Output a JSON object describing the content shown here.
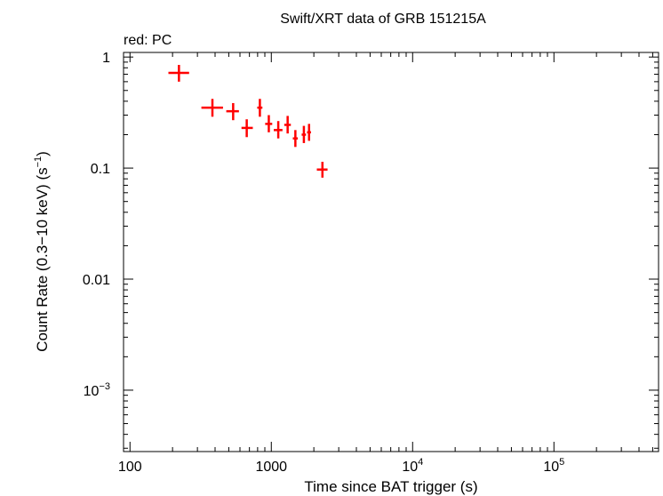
{
  "chart_data": {
    "type": "scatter",
    "title": "Swift/XRT data of GRB 151215A",
    "subtitle": "red: PC",
    "xlabel": "Time since BAT trigger (s)",
    "ylabel_main": "Count Rate (0.3−10 keV) (s",
    "ylabel_sup": "−1",
    "ylabel_close": ")",
    "x_scale": "log",
    "y_scale": "log",
    "xlim": [
      90,
      550000
    ],
    "ylim": [
      0.00028,
      1.1
    ],
    "grid": false,
    "x_ticks": [
      {
        "value": 100,
        "label": "100"
      },
      {
        "value": 1000,
        "label": "1000"
      },
      {
        "value": 10000,
        "base": "10",
        "exp": "4"
      },
      {
        "value": 100000,
        "base": "10",
        "exp": "5"
      }
    ],
    "y_ticks": [
      {
        "value": 1,
        "label": "1"
      },
      {
        "value": 0.1,
        "label": "0.1"
      },
      {
        "value": 0.01,
        "label": "0.01"
      },
      {
        "value": 0.001,
        "base": "10",
        "exp": "−3"
      }
    ],
    "series": [
      {
        "color": "#ff0000",
        "points": [
          {
            "x": 222,
            "xlo": 187,
            "xhi": 262,
            "y": 0.72,
            "ylo": 0.6,
            "yhi": 0.85
          },
          {
            "x": 383,
            "xlo": 320,
            "xhi": 455,
            "y": 0.35,
            "ylo": 0.29,
            "yhi": 0.42
          },
          {
            "x": 537,
            "xlo": 480,
            "xhi": 590,
            "y": 0.325,
            "ylo": 0.27,
            "yhi": 0.385
          },
          {
            "x": 670,
            "xlo": 615,
            "xhi": 740,
            "y": 0.23,
            "ylo": 0.19,
            "yhi": 0.275
          },
          {
            "x": 830,
            "xlo": 795,
            "xhi": 865,
            "y": 0.35,
            "ylo": 0.29,
            "yhi": 0.42
          },
          {
            "x": 960,
            "xlo": 905,
            "xhi": 1015,
            "y": 0.25,
            "ylo": 0.21,
            "yhi": 0.3
          },
          {
            "x": 1120,
            "xlo": 1040,
            "xhi": 1200,
            "y": 0.22,
            "ylo": 0.185,
            "yhi": 0.265
          },
          {
            "x": 1305,
            "xlo": 1235,
            "xhi": 1375,
            "y": 0.245,
            "ylo": 0.205,
            "yhi": 0.295
          },
          {
            "x": 1480,
            "xlo": 1420,
            "xhi": 1540,
            "y": 0.185,
            "ylo": 0.155,
            "yhi": 0.22
          },
          {
            "x": 1700,
            "xlo": 1640,
            "xhi": 1760,
            "y": 0.2,
            "ylo": 0.168,
            "yhi": 0.24
          },
          {
            "x": 1850,
            "xlo": 1790,
            "xhi": 1910,
            "y": 0.21,
            "ylo": 0.176,
            "yhi": 0.25
          },
          {
            "x": 2300,
            "xlo": 2100,
            "xhi": 2500,
            "y": 0.097,
            "ylo": 0.082,
            "yhi": 0.114
          }
        ]
      }
    ]
  }
}
